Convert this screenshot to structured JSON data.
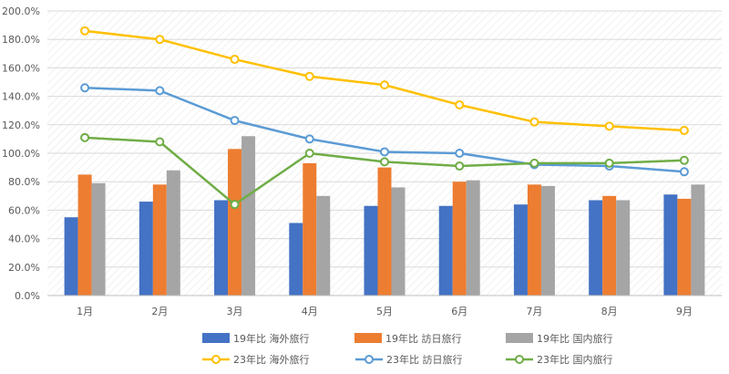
{
  "chart_data": {
    "type": "bar",
    "categories": [
      "1月",
      "2月",
      "3月",
      "4月",
      "5月",
      "6月",
      "7月",
      "8月",
      "9月"
    ],
    "ylim": [
      0,
      200
    ],
    "yticks": [
      "0.0%",
      "20.0%",
      "40.0%",
      "60.0%",
      "80.0%",
      "100.0%",
      "120.0%",
      "140.0%",
      "160.0%",
      "180.0%",
      "200.0%"
    ],
    "grid": true,
    "legend_position": "bottom",
    "bar_series": [
      {
        "name": "19年比 海外旅行",
        "color": "#4472C4",
        "values": [
          55,
          66,
          67,
          51,
          63,
          63,
          64,
          67,
          71
        ]
      },
      {
        "name": "19年比 訪日旅行",
        "color": "#ED7D31",
        "values": [
          85,
          78,
          103,
          93,
          90,
          80,
          78,
          70,
          68
        ]
      },
      {
        "name": "19年比 国内旅行",
        "color": "#A5A5A5",
        "values": [
          79,
          88,
          112,
          70,
          76,
          81,
          77,
          67,
          78
        ]
      }
    ],
    "line_series": [
      {
        "name": "23年比 海外旅行",
        "color": "#FFC000",
        "values": [
          186,
          180,
          166,
          154,
          148,
          134,
          122,
          119,
          116
        ]
      },
      {
        "name": "23年比 訪日旅行",
        "color": "#5B9BD5",
        "values": [
          146,
          144,
          123,
          110,
          101,
          100,
          92,
          91,
          87
        ]
      },
      {
        "name": "23年比 国内旅行",
        "color": "#70AD47",
        "values": [
          111,
          108,
          64,
          100,
          94,
          91,
          93,
          93,
          95
        ]
      }
    ]
  }
}
